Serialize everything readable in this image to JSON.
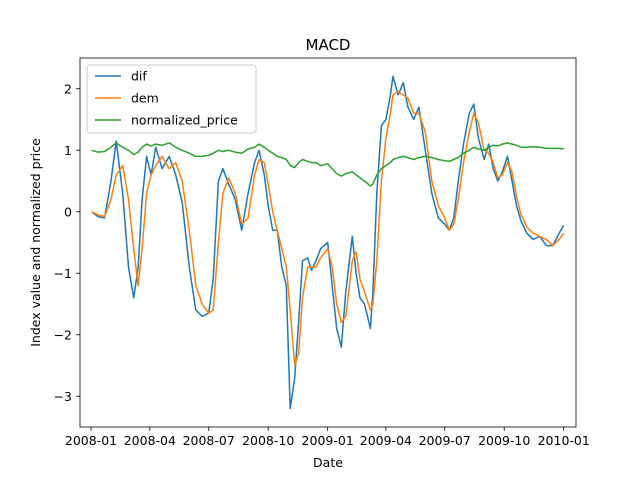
{
  "chart_data": {
    "type": "line",
    "title": "MACD",
    "xlabel": "Date",
    "ylabel": "Index value and normalized price",
    "xlim": [
      "2007-12-15",
      "2010-01-20"
    ],
    "ylim": [
      -3.5,
      2.5
    ],
    "x_ticks": [
      "2008-01",
      "2008-04",
      "2008-07",
      "2008-10",
      "2009-01",
      "2009-04",
      "2009-07",
      "2009-10",
      "2010-01"
    ],
    "x_tick_dates": [
      "2008-01-01",
      "2008-04-01",
      "2008-07-01",
      "2008-10-01",
      "2009-01-01",
      "2009-04-01",
      "2009-07-01",
      "2009-10-01",
      "2010-01-01"
    ],
    "y_ticks": [
      -3,
      -2,
      -1,
      0,
      1,
      2
    ],
    "y_tick_labels": [
      "−3",
      "−2",
      "−1",
      "0",
      "1",
      "2"
    ],
    "grid": false,
    "legend": "upper-left",
    "series": [
      {
        "name": "dif",
        "color": "#1f77b4",
        "points": [
          [
            "2008-01-02",
            0.0
          ],
          [
            "2008-01-12",
            -0.08
          ],
          [
            "2008-01-22",
            -0.1
          ],
          [
            "2008-02-01",
            0.5
          ],
          [
            "2008-02-09",
            1.15
          ],
          [
            "2008-02-19",
            0.3
          ],
          [
            "2008-02-28",
            -0.9
          ],
          [
            "2008-03-07",
            -1.4
          ],
          [
            "2008-03-14",
            -0.9
          ],
          [
            "2008-03-20",
            0.2
          ],
          [
            "2008-03-27",
            0.9
          ],
          [
            "2008-04-03",
            0.6
          ],
          [
            "2008-04-10",
            1.05
          ],
          [
            "2008-04-20",
            0.7
          ],
          [
            "2008-05-01",
            0.9
          ],
          [
            "2008-05-11",
            0.6
          ],
          [
            "2008-05-21",
            0.15
          ],
          [
            "2008-06-01",
            -0.9
          ],
          [
            "2008-06-11",
            -1.6
          ],
          [
            "2008-06-21",
            -1.7
          ],
          [
            "2008-07-01",
            -1.65
          ],
          [
            "2008-07-08",
            -1.1
          ],
          [
            "2008-07-16",
            0.5
          ],
          [
            "2008-07-23",
            0.7
          ],
          [
            "2008-08-01",
            0.45
          ],
          [
            "2008-08-11",
            0.2
          ],
          [
            "2008-08-21",
            -0.3
          ],
          [
            "2008-08-31",
            0.3
          ],
          [
            "2008-09-10",
            0.8
          ],
          [
            "2008-09-17",
            1.0
          ],
          [
            "2008-09-25",
            0.6
          ],
          [
            "2008-10-01",
            0.1
          ],
          [
            "2008-10-08",
            -0.3
          ],
          [
            "2008-10-15",
            -0.3
          ],
          [
            "2008-10-22",
            -0.9
          ],
          [
            "2008-10-29",
            -1.2
          ],
          [
            "2008-11-04",
            -3.2
          ],
          [
            "2008-11-11",
            -2.7
          ],
          [
            "2008-11-17",
            -1.8
          ],
          [
            "2008-11-23",
            -0.8
          ],
          [
            "2008-12-01",
            -0.75
          ],
          [
            "2008-12-07",
            -0.95
          ],
          [
            "2008-12-14",
            -0.8
          ],
          [
            "2008-12-21",
            -0.6
          ],
          [
            "2009-01-01",
            -0.5
          ],
          [
            "2009-01-08",
            -1.2
          ],
          [
            "2009-01-15",
            -1.9
          ],
          [
            "2009-01-22",
            -2.2
          ],
          [
            "2009-01-29",
            -1.3
          ],
          [
            "2009-02-08",
            -0.4
          ],
          [
            "2009-02-14",
            -1.0
          ],
          [
            "2009-02-20",
            -1.4
          ],
          [
            "2009-02-27",
            -1.5
          ],
          [
            "2009-03-08",
            -1.9
          ],
          [
            "2009-03-12",
            -1.3
          ],
          [
            "2009-03-18",
            0.3
          ],
          [
            "2009-03-25",
            1.4
          ],
          [
            "2009-04-01",
            1.5
          ],
          [
            "2009-04-08",
            1.9
          ],
          [
            "2009-04-12",
            2.2
          ],
          [
            "2009-04-20",
            1.9
          ],
          [
            "2009-04-28",
            2.1
          ],
          [
            "2009-05-05",
            1.7
          ],
          [
            "2009-05-14",
            1.5
          ],
          [
            "2009-05-22",
            1.7
          ],
          [
            "2009-06-01",
            1.0
          ],
          [
            "2009-06-11",
            0.3
          ],
          [
            "2009-06-21",
            -0.1
          ],
          [
            "2009-07-01",
            -0.2
          ],
          [
            "2009-07-08",
            -0.3
          ],
          [
            "2009-07-15",
            -0.1
          ],
          [
            "2009-07-22",
            0.5
          ],
          [
            "2009-07-30",
            1.1
          ],
          [
            "2009-08-08",
            1.6
          ],
          [
            "2009-08-15",
            1.75
          ],
          [
            "2009-08-22",
            1.2
          ],
          [
            "2009-08-31",
            0.85
          ],
          [
            "2009-09-07",
            1.1
          ],
          [
            "2009-09-14",
            0.7
          ],
          [
            "2009-09-21",
            0.5
          ],
          [
            "2009-09-28",
            0.65
          ],
          [
            "2009-10-06",
            0.9
          ],
          [
            "2009-10-13",
            0.5
          ],
          [
            "2009-10-20",
            0.1
          ],
          [
            "2009-10-27",
            -0.15
          ],
          [
            "2009-11-05",
            -0.35
          ],
          [
            "2009-11-15",
            -0.45
          ],
          [
            "2009-11-25",
            -0.4
          ],
          [
            "2009-12-05",
            -0.55
          ],
          [
            "2009-12-15",
            -0.55
          ],
          [
            "2009-12-25",
            -0.35
          ],
          [
            "2010-01-01",
            -0.22
          ]
        ]
      },
      {
        "name": "dem",
        "color": "#ff7f0e",
        "points": [
          [
            "2008-01-02",
            0.0
          ],
          [
            "2008-01-12",
            -0.05
          ],
          [
            "2008-01-22",
            -0.08
          ],
          [
            "2008-02-01",
            0.2
          ],
          [
            "2008-02-09",
            0.6
          ],
          [
            "2008-02-19",
            0.75
          ],
          [
            "2008-02-28",
            0.2
          ],
          [
            "2008-03-07",
            -0.6
          ],
          [
            "2008-03-14",
            -1.2
          ],
          [
            "2008-03-20",
            -0.6
          ],
          [
            "2008-03-27",
            0.3
          ],
          [
            "2008-04-03",
            0.6
          ],
          [
            "2008-04-10",
            0.75
          ],
          [
            "2008-04-20",
            0.9
          ],
          [
            "2008-05-01",
            0.7
          ],
          [
            "2008-05-11",
            0.8
          ],
          [
            "2008-05-21",
            0.5
          ],
          [
            "2008-06-01",
            -0.3
          ],
          [
            "2008-06-11",
            -1.2
          ],
          [
            "2008-06-21",
            -1.5
          ],
          [
            "2008-07-01",
            -1.65
          ],
          [
            "2008-07-08",
            -1.6
          ],
          [
            "2008-07-16",
            -0.5
          ],
          [
            "2008-07-23",
            0.3
          ],
          [
            "2008-08-01",
            0.55
          ],
          [
            "2008-08-11",
            0.3
          ],
          [
            "2008-08-21",
            -0.2
          ],
          [
            "2008-08-31",
            -0.1
          ],
          [
            "2008-09-10",
            0.6
          ],
          [
            "2008-09-17",
            0.85
          ],
          [
            "2008-09-25",
            0.8
          ],
          [
            "2008-10-01",
            0.45
          ],
          [
            "2008-10-08",
            0.0
          ],
          [
            "2008-10-15",
            -0.3
          ],
          [
            "2008-10-22",
            -0.6
          ],
          [
            "2008-10-29",
            -0.9
          ],
          [
            "2008-11-04",
            -1.6
          ],
          [
            "2008-11-11",
            -2.5
          ],
          [
            "2008-11-17",
            -2.3
          ],
          [
            "2008-11-23",
            -1.4
          ],
          [
            "2008-12-01",
            -0.9
          ],
          [
            "2008-12-07",
            -0.9
          ],
          [
            "2008-12-14",
            -0.9
          ],
          [
            "2008-12-21",
            -0.75
          ],
          [
            "2009-01-01",
            -0.6
          ],
          [
            "2009-01-08",
            -0.9
          ],
          [
            "2009-01-15",
            -1.5
          ],
          [
            "2009-01-22",
            -1.8
          ],
          [
            "2009-01-29",
            -1.7
          ],
          [
            "2009-02-08",
            -0.8
          ],
          [
            "2009-02-14",
            -0.65
          ],
          [
            "2009-02-20",
            -1.1
          ],
          [
            "2009-02-27",
            -1.3
          ],
          [
            "2009-03-08",
            -1.6
          ],
          [
            "2009-03-12",
            -1.5
          ],
          [
            "2009-03-18",
            -0.8
          ],
          [
            "2009-03-25",
            0.5
          ],
          [
            "2009-04-01",
            1.2
          ],
          [
            "2009-04-08",
            1.6
          ],
          [
            "2009-04-12",
            1.9
          ],
          [
            "2009-04-20",
            1.95
          ],
          [
            "2009-04-28",
            1.9
          ],
          [
            "2009-05-05",
            1.85
          ],
          [
            "2009-05-14",
            1.6
          ],
          [
            "2009-05-22",
            1.6
          ],
          [
            "2009-06-01",
            1.3
          ],
          [
            "2009-06-11",
            0.5
          ],
          [
            "2009-06-21",
            0.1
          ],
          [
            "2009-07-01",
            -0.1
          ],
          [
            "2009-07-08",
            -0.3
          ],
          [
            "2009-07-15",
            -0.2
          ],
          [
            "2009-07-22",
            0.2
          ],
          [
            "2009-07-30",
            0.8
          ],
          [
            "2009-08-08",
            1.3
          ],
          [
            "2009-08-15",
            1.6
          ],
          [
            "2009-08-22",
            1.45
          ],
          [
            "2009-08-31",
            1.0
          ],
          [
            "2009-09-07",
            0.95
          ],
          [
            "2009-09-14",
            0.8
          ],
          [
            "2009-09-21",
            0.55
          ],
          [
            "2009-09-28",
            0.6
          ],
          [
            "2009-10-06",
            0.8
          ],
          [
            "2009-10-13",
            0.65
          ],
          [
            "2009-10-20",
            0.25
          ],
          [
            "2009-10-27",
            -0.05
          ],
          [
            "2009-11-05",
            -0.25
          ],
          [
            "2009-11-15",
            -0.35
          ],
          [
            "2009-11-25",
            -0.4
          ],
          [
            "2009-12-05",
            -0.45
          ],
          [
            "2009-12-15",
            -0.55
          ],
          [
            "2009-12-25",
            -0.45
          ],
          [
            "2010-01-01",
            -0.35
          ]
        ]
      },
      {
        "name": "normalized_price",
        "color": "#2ca02c",
        "points": [
          [
            "2008-01-02",
            1.0
          ],
          [
            "2008-01-12",
            0.97
          ],
          [
            "2008-01-22",
            0.98
          ],
          [
            "2008-02-01",
            1.05
          ],
          [
            "2008-02-09",
            1.12
          ],
          [
            "2008-02-19",
            1.05
          ],
          [
            "2008-02-28",
            1.0
          ],
          [
            "2008-03-07",
            0.93
          ],
          [
            "2008-03-14",
            0.97
          ],
          [
            "2008-03-20",
            1.05
          ],
          [
            "2008-03-27",
            1.1
          ],
          [
            "2008-04-03",
            1.07
          ],
          [
            "2008-04-10",
            1.1
          ],
          [
            "2008-04-20",
            1.08
          ],
          [
            "2008-05-01",
            1.12
          ],
          [
            "2008-05-11",
            1.05
          ],
          [
            "2008-05-21",
            1.0
          ],
          [
            "2008-06-01",
            0.95
          ],
          [
            "2008-06-11",
            0.9
          ],
          [
            "2008-06-21",
            0.9
          ],
          [
            "2008-07-01",
            0.92
          ],
          [
            "2008-07-08",
            0.95
          ],
          [
            "2008-07-16",
            1.0
          ],
          [
            "2008-07-23",
            0.98
          ],
          [
            "2008-08-01",
            1.0
          ],
          [
            "2008-08-11",
            0.97
          ],
          [
            "2008-08-21",
            0.95
          ],
          [
            "2008-08-31",
            1.02
          ],
          [
            "2008-09-10",
            1.05
          ],
          [
            "2008-09-17",
            1.1
          ],
          [
            "2008-09-25",
            1.05
          ],
          [
            "2008-10-01",
            1.0
          ],
          [
            "2008-10-08",
            0.95
          ],
          [
            "2008-10-15",
            0.9
          ],
          [
            "2008-10-22",
            0.88
          ],
          [
            "2008-10-29",
            0.85
          ],
          [
            "2008-11-04",
            0.75
          ],
          [
            "2008-11-11",
            0.72
          ],
          [
            "2008-11-17",
            0.8
          ],
          [
            "2008-11-23",
            0.85
          ],
          [
            "2008-12-01",
            0.82
          ],
          [
            "2008-12-07",
            0.8
          ],
          [
            "2008-12-14",
            0.8
          ],
          [
            "2008-12-21",
            0.75
          ],
          [
            "2009-01-01",
            0.78
          ],
          [
            "2009-01-08",
            0.7
          ],
          [
            "2009-01-15",
            0.62
          ],
          [
            "2009-01-22",
            0.58
          ],
          [
            "2009-01-29",
            0.62
          ],
          [
            "2009-02-08",
            0.65
          ],
          [
            "2009-02-14",
            0.6
          ],
          [
            "2009-02-20",
            0.55
          ],
          [
            "2009-02-27",
            0.5
          ],
          [
            "2009-03-08",
            0.42
          ],
          [
            "2009-03-12",
            0.45
          ],
          [
            "2009-03-18",
            0.6
          ],
          [
            "2009-03-25",
            0.7
          ],
          [
            "2009-04-01",
            0.75
          ],
          [
            "2009-04-08",
            0.8
          ],
          [
            "2009-04-12",
            0.85
          ],
          [
            "2009-04-20",
            0.88
          ],
          [
            "2009-04-28",
            0.9
          ],
          [
            "2009-05-05",
            0.88
          ],
          [
            "2009-05-14",
            0.85
          ],
          [
            "2009-05-22",
            0.88
          ],
          [
            "2009-06-01",
            0.9
          ],
          [
            "2009-06-11",
            0.88
          ],
          [
            "2009-06-21",
            0.85
          ],
          [
            "2009-07-01",
            0.83
          ],
          [
            "2009-07-08",
            0.82
          ],
          [
            "2009-07-15",
            0.85
          ],
          [
            "2009-07-22",
            0.88
          ],
          [
            "2009-07-30",
            0.95
          ],
          [
            "2009-08-08",
            1.0
          ],
          [
            "2009-08-15",
            1.05
          ],
          [
            "2009-08-22",
            1.02
          ],
          [
            "2009-08-31",
            1.0
          ],
          [
            "2009-09-07",
            1.05
          ],
          [
            "2009-09-14",
            1.08
          ],
          [
            "2009-09-21",
            1.07
          ],
          [
            "2009-09-28",
            1.1
          ],
          [
            "2009-10-06",
            1.12
          ],
          [
            "2009-10-13",
            1.1
          ],
          [
            "2009-10-20",
            1.08
          ],
          [
            "2009-10-27",
            1.05
          ],
          [
            "2009-11-05",
            1.05
          ],
          [
            "2009-11-15",
            1.06
          ],
          [
            "2009-11-25",
            1.05
          ],
          [
            "2009-12-05",
            1.03
          ],
          [
            "2009-12-15",
            1.03
          ],
          [
            "2009-12-25",
            1.03
          ],
          [
            "2010-01-01",
            1.02
          ]
        ]
      }
    ]
  }
}
